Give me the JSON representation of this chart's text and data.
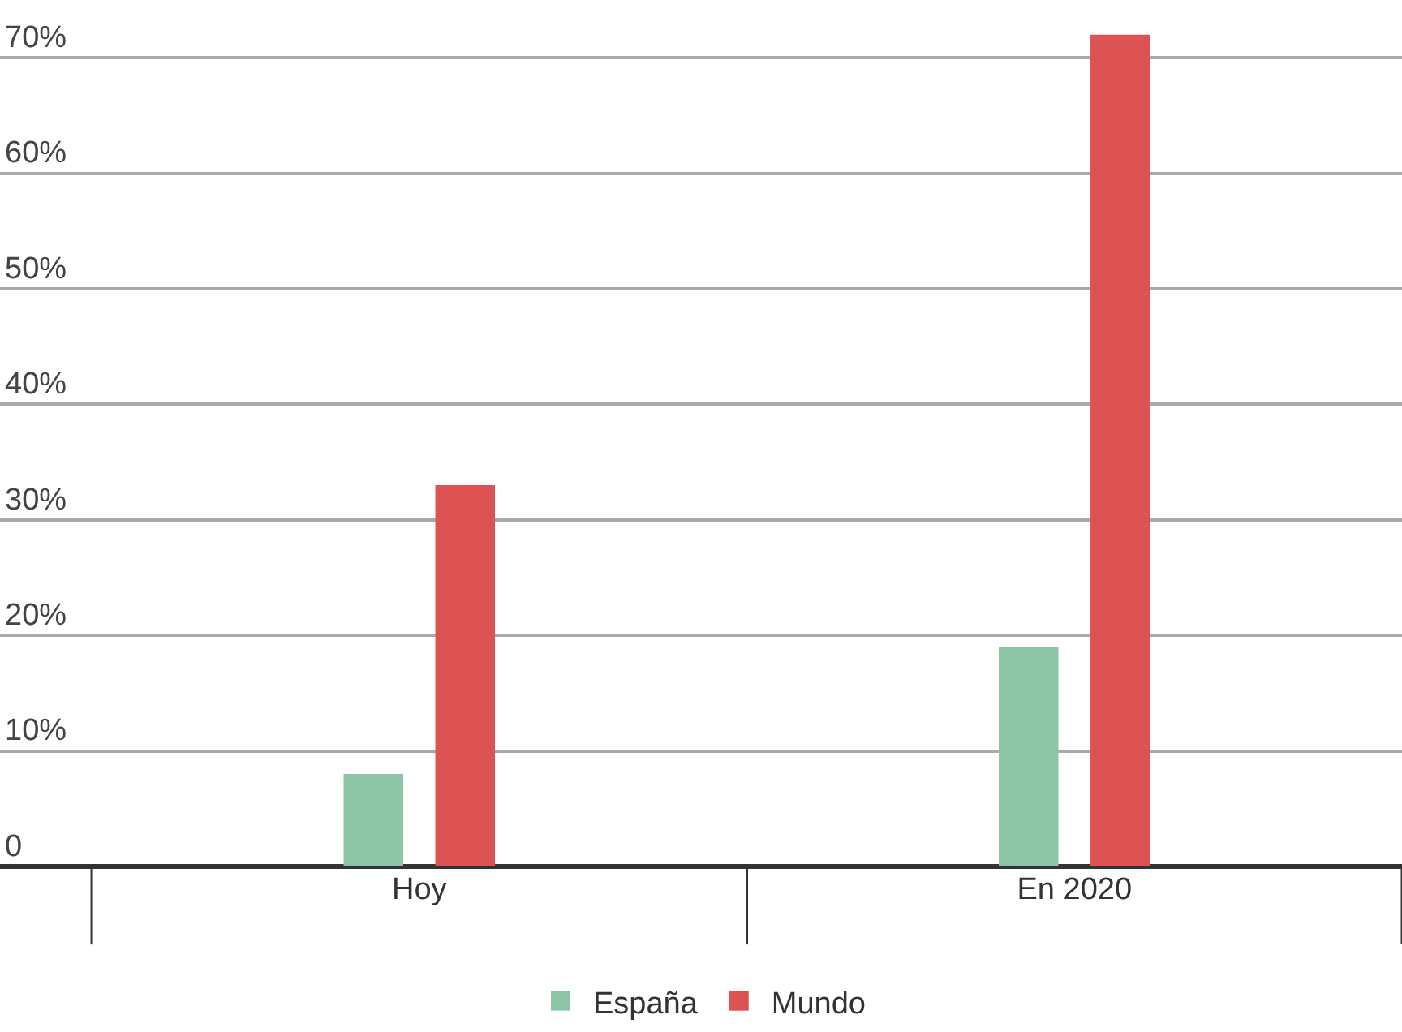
{
  "chart_data": {
    "type": "bar",
    "categories": [
      "Hoy",
      "En 2020"
    ],
    "series": [
      {
        "name": "España",
        "color": "#8cc5a5",
        "values": [
          8,
          19
        ]
      },
      {
        "name": "Mundo",
        "color": "#dd5353",
        "values": [
          33,
          72
        ]
      }
    ],
    "ylim": [
      0,
      75
    ],
    "yticks": [
      {
        "value": 0,
        "label": "0"
      },
      {
        "value": 10,
        "label": "10%"
      },
      {
        "value": 20,
        "label": "20%"
      },
      {
        "value": 30,
        "label": "30%"
      },
      {
        "value": 40,
        "label": "40%"
      },
      {
        "value": 50,
        "label": "50%"
      },
      {
        "value": 60,
        "label": "60%"
      },
      {
        "value": 70,
        "label": "70%"
      }
    ],
    "grid": "y",
    "legend": "bottom"
  }
}
